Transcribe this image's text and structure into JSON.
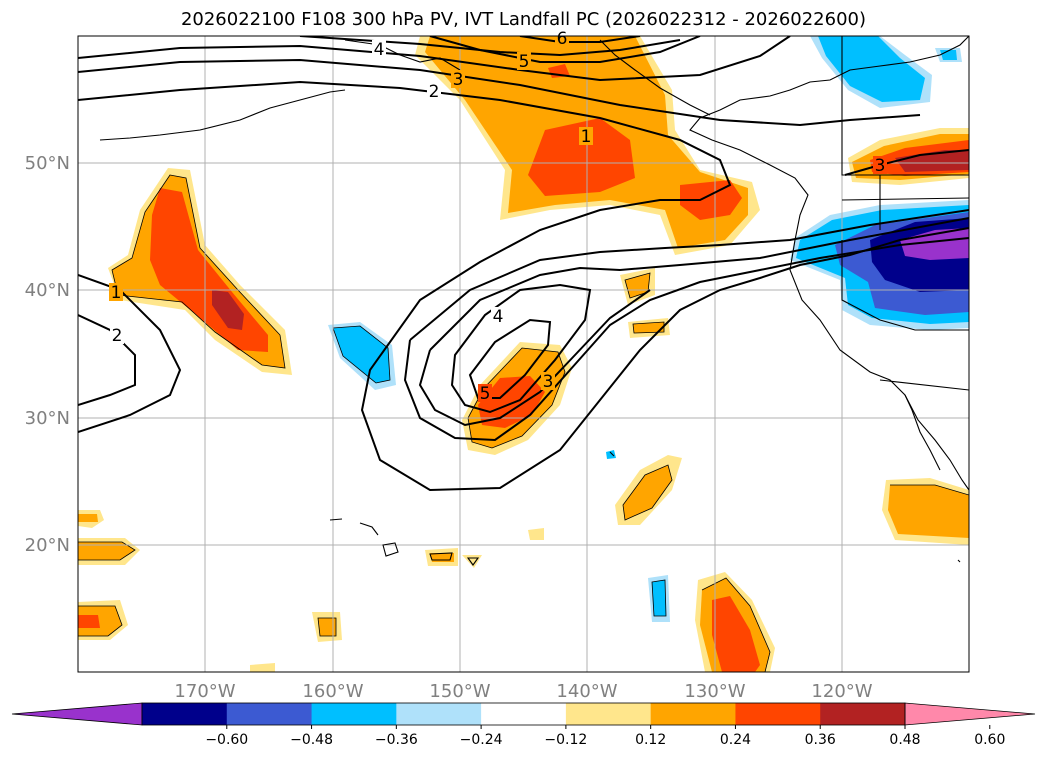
{
  "title": "2026022100 F108 300 hPa PV, IVT Landfall PC (2026022312 - 2026022600)",
  "lon_labels": [
    "170°W",
    "160°W",
    "150°W",
    "140°W",
    "130°W",
    "120°W"
  ],
  "lat_labels": [
    "50°N",
    "40°N",
    "30°N",
    "20°N"
  ],
  "colorbar": {
    "ticks": [
      "−0.60",
      "−0.48",
      "−0.36",
      "−0.24",
      "−0.12",
      "0.12",
      "0.24",
      "0.36",
      "0.48",
      "0.60"
    ],
    "colors": [
      "#9932cc",
      "#00008b",
      "#3c5ad2",
      "#00bfff",
      "#afe1fa",
      "#ffffff",
      "#ffe68c",
      "#ffa500",
      "#ff4500",
      "#b22222",
      "#ff88aa"
    ]
  },
  "contour_labels": [
    "1",
    "2",
    "3",
    "4",
    "5",
    "6",
    "1",
    "2",
    "3",
    "4",
    "5",
    "3"
  ],
  "colors": {
    "grid": "#b0b0b0",
    "axis_label": "#808080",
    "contour": "#000000"
  }
}
